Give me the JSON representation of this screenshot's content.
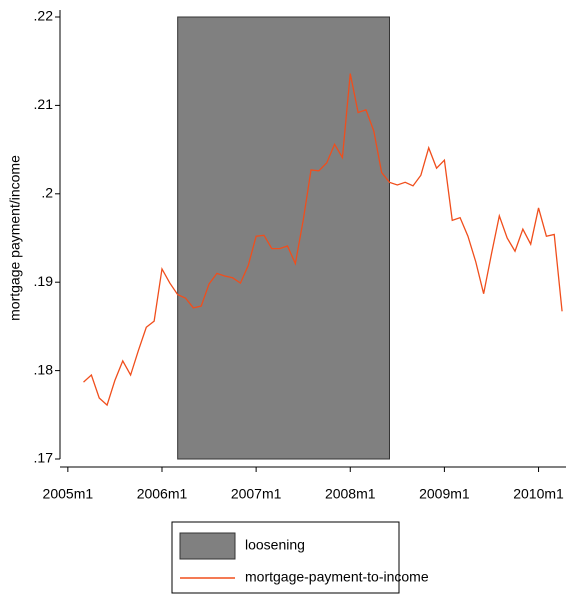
{
  "chart_data": {
    "type": "line",
    "ylabel": "mortgage payment/income",
    "x": [
      542,
      543,
      544,
      545,
      546,
      547,
      548,
      549,
      550,
      551,
      552,
      553,
      554,
      555,
      556,
      557,
      558,
      559,
      560,
      561,
      562,
      563,
      564,
      565,
      566,
      567,
      568,
      569,
      570,
      571,
      572,
      573,
      574,
      575,
      576,
      577,
      578,
      579,
      580,
      581,
      582,
      583,
      584,
      585,
      586,
      587,
      588,
      589,
      590,
      591,
      592,
      593,
      594,
      595,
      596,
      597,
      598,
      599,
      600,
      601,
      602,
      603
    ],
    "series": [
      {
        "name": "mortgage-payment-to-income",
        "color": "#f04e1c",
        "values": [
          0.1787,
          0.1795,
          0.1769,
          0.1761,
          0.1789,
          0.1811,
          0.1795,
          0.1823,
          0.1849,
          0.1856,
          0.1915,
          0.1899,
          0.1886,
          0.1882,
          0.1871,
          0.1873,
          0.1898,
          0.191,
          0.1907,
          0.1905,
          0.1899,
          0.1919,
          0.1952,
          0.1953,
          0.1938,
          0.1938,
          0.1941,
          0.1921,
          0.197,
          0.2027,
          0.2026,
          0.2035,
          0.2056,
          0.2041,
          0.2136,
          0.2092,
          0.2095,
          0.2071,
          0.2024,
          0.2013,
          0.201,
          0.2013,
          0.2009,
          0.2021,
          0.2052,
          0.2029,
          0.2038,
          0.197,
          0.1973,
          0.1952,
          0.1923,
          0.1887,
          0.1932,
          0.1975,
          0.195,
          0.1935,
          0.196,
          0.1943,
          0.1984,
          0.1952,
          0.1954,
          0.1867
        ]
      }
    ],
    "bands": [
      {
        "name": "loosening",
        "color": "#808080",
        "x": [
          554,
          581
        ]
      }
    ],
    "xlim": [
      539,
      603.5
    ],
    "ylim": [
      0.17,
      0.22
    ],
    "xticks": [
      {
        "value": 540,
        "label": "2005m1"
      },
      {
        "value": 552,
        "label": "2006m1"
      },
      {
        "value": 564,
        "label": "2007m1"
      },
      {
        "value": 576,
        "label": "2008m1"
      },
      {
        "value": 588,
        "label": "2009m1"
      },
      {
        "value": 600,
        "label": "2010m1"
      }
    ],
    "yticks": [
      {
        "value": 0.17,
        "label": ".17"
      },
      {
        "value": 0.18,
        "label": ".18"
      },
      {
        "value": 0.19,
        "label": ".19"
      },
      {
        "value": 0.2,
        "label": ".2"
      },
      {
        "value": 0.21,
        "label": ".21"
      },
      {
        "value": 0.22,
        "label": ".22"
      }
    ]
  }
}
